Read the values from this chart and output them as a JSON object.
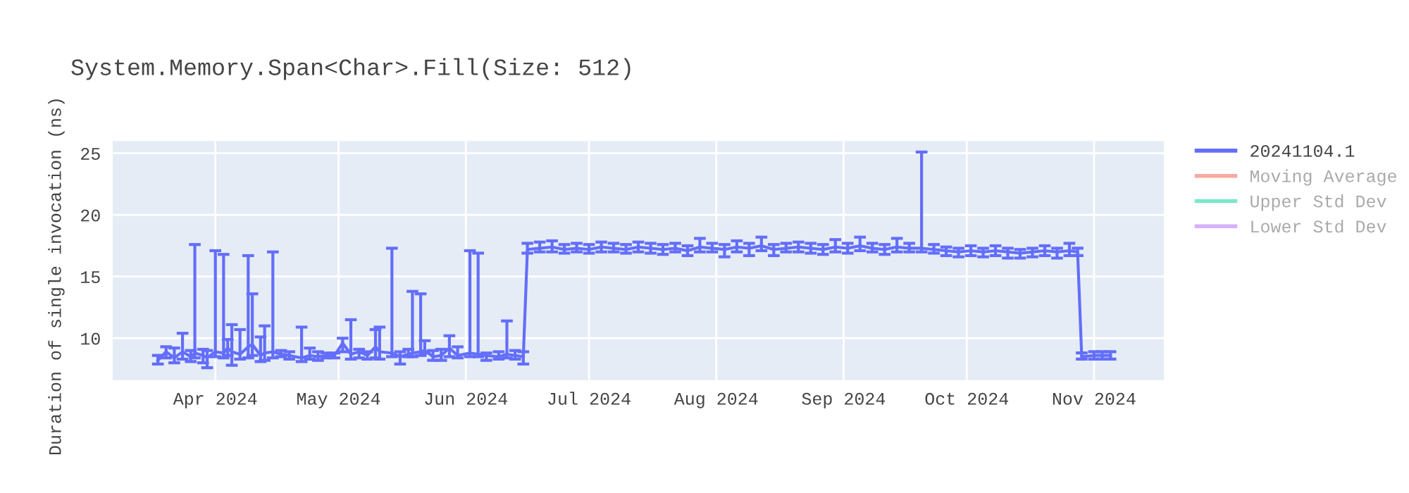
{
  "chart_data": {
    "type": "line",
    "title": "System.Memory.Span<Char>.Fill(Size: 512)",
    "ylabel": "Duration of single invocation (ns)",
    "xlim": [
      "2024-03-07",
      "2024-11-18"
    ],
    "ylim": [
      6.6,
      26
    ],
    "xticks": [
      {
        "value": "2024-04-01",
        "label": "Apr 2024"
      },
      {
        "value": "2024-05-01",
        "label": "May 2024"
      },
      {
        "value": "2024-06-01",
        "label": "Jun 2024"
      },
      {
        "value": "2024-07-01",
        "label": "Jul 2024"
      },
      {
        "value": "2024-08-01",
        "label": "Aug 2024"
      },
      {
        "value": "2024-09-01",
        "label": "Sep 2024"
      },
      {
        "value": "2024-10-01",
        "label": "Oct 2024"
      },
      {
        "value": "2024-11-01",
        "label": "Nov 2024"
      }
    ],
    "yticks": [
      10,
      15,
      20,
      25
    ],
    "grid": true,
    "legend": "right",
    "marker": "none",
    "line_style": "solid",
    "series": [
      {
        "name": "20241104.1",
        "color": "#636efa",
        "x": [
          "2024-03-18",
          "2024-03-20",
          "2024-03-22",
          "2024-03-24",
          "2024-03-26",
          "2024-03-27",
          "2024-03-29",
          "2024-03-30",
          "2024-04-01",
          "2024-04-03",
          "2024-04-04",
          "2024-04-05",
          "2024-04-07",
          "2024-04-09",
          "2024-04-10",
          "2024-04-12",
          "2024-04-13",
          "2024-04-15",
          "2024-04-17",
          "2024-04-19",
          "2024-04-22",
          "2024-04-24",
          "2024-04-26",
          "2024-04-28",
          "2024-04-30",
          "2024-05-02",
          "2024-05-04",
          "2024-05-06",
          "2024-05-08",
          "2024-05-10",
          "2024-05-11",
          "2024-05-14",
          "2024-05-16",
          "2024-05-18",
          "2024-05-19",
          "2024-05-21",
          "2024-05-22",
          "2024-05-24",
          "2024-05-26",
          "2024-05-28",
          "2024-05-30",
          "2024-06-02",
          "2024-06-04",
          "2024-06-06",
          "2024-06-09",
          "2024-06-11",
          "2024-06-13",
          "2024-06-15",
          "2024-06-16",
          "2024-06-19",
          "2024-06-22",
          "2024-06-25",
          "2024-06-28",
          "2024-07-01",
          "2024-07-04",
          "2024-07-07",
          "2024-07-10",
          "2024-07-13",
          "2024-07-16",
          "2024-07-19",
          "2024-07-22",
          "2024-07-25",
          "2024-07-28",
          "2024-07-31",
          "2024-08-03",
          "2024-08-06",
          "2024-08-09",
          "2024-08-12",
          "2024-08-15",
          "2024-08-18",
          "2024-08-21",
          "2024-08-24",
          "2024-08-27",
          "2024-08-30",
          "2024-09-02",
          "2024-09-05",
          "2024-09-08",
          "2024-09-11",
          "2024-09-14",
          "2024-09-17",
          "2024-09-20",
          "2024-09-23",
          "2024-09-26",
          "2024-09-29",
          "2024-10-02",
          "2024-10-05",
          "2024-10-08",
          "2024-10-11",
          "2024-10-14",
          "2024-10-17",
          "2024-10-20",
          "2024-10-23",
          "2024-10-26",
          "2024-10-28",
          "2024-10-29",
          "2024-11-01",
          "2024-11-03",
          "2024-11-05"
        ],
        "values": [
          8.2,
          8.9,
          8.4,
          8.9,
          8.5,
          8.8,
          8.6,
          8.4,
          8.9,
          8.8,
          9.2,
          8.9,
          8.7,
          9.3,
          9.5,
          8.6,
          8.8,
          8.9,
          8.7,
          8.6,
          8.4,
          8.6,
          8.5,
          8.6,
          8.6,
          9.6,
          8.7,
          8.9,
          8.6,
          9.3,
          8.9,
          8.8,
          8.5,
          8.7,
          8.8,
          8.9,
          9.0,
          8.5,
          8.6,
          9.2,
          8.6,
          8.8,
          8.7,
          8.6,
          8.5,
          8.7,
          8.6,
          8.5,
          17.2,
          17.3,
          17.4,
          17.2,
          17.3,
          17.2,
          17.4,
          17.3,
          17.2,
          17.4,
          17.3,
          17.2,
          17.3,
          17.1,
          17.4,
          17.3,
          17.2,
          17.4,
          17.3,
          17.5,
          17.2,
          17.3,
          17.4,
          17.3,
          17.2,
          17.4,
          17.3,
          17.5,
          17.3,
          17.2,
          17.4,
          17.3,
          17.3,
          17.2,
          17.1,
          17.0,
          17.1,
          17.0,
          17.1,
          17.0,
          16.9,
          17.0,
          17.1,
          17.0,
          17.1,
          17.0,
          8.5,
          8.6,
          8.6,
          8.6
        ],
        "errors": [
          [
            7.9,
            8.6
          ],
          [
            8.4,
            9.3
          ],
          [
            8.0,
            9.2
          ],
          [
            8.3,
            10.4
          ],
          [
            8.1,
            9.0
          ],
          [
            8.4,
            17.6
          ],
          [
            8.0,
            9.1
          ],
          [
            7.6,
            9.0
          ],
          [
            8.5,
            17.1
          ],
          [
            8.4,
            16.8
          ],
          [
            8.6,
            9.9
          ],
          [
            7.8,
            11.1
          ],
          [
            8.3,
            10.7
          ],
          [
            8.4,
            16.7
          ],
          [
            8.6,
            13.6
          ],
          [
            8.1,
            10.1
          ],
          [
            8.2,
            11.0
          ],
          [
            8.4,
            17.0
          ],
          [
            8.5,
            9.0
          ],
          [
            8.3,
            8.9
          ],
          [
            8.1,
            10.9
          ],
          [
            8.3,
            9.2
          ],
          [
            8.2,
            8.9
          ],
          [
            8.4,
            8.8
          ],
          [
            8.4,
            8.8
          ],
          [
            8.9,
            10.0
          ],
          [
            8.3,
            11.5
          ],
          [
            8.4,
            9.1
          ],
          [
            8.3,
            8.9
          ],
          [
            8.4,
            10.7
          ],
          [
            8.3,
            10.9
          ],
          [
            8.5,
            17.3
          ],
          [
            7.9,
            8.9
          ],
          [
            8.5,
            9.1
          ],
          [
            8.5,
            13.8
          ],
          [
            8.6,
            13.6
          ],
          [
            8.8,
            9.8
          ],
          [
            8.2,
            9.0
          ],
          [
            8.2,
            9.1
          ],
          [
            8.5,
            10.2
          ],
          [
            8.4,
            9.3
          ],
          [
            8.5,
            17.1
          ],
          [
            8.5,
            16.9
          ],
          [
            8.2,
            8.8
          ],
          [
            8.3,
            8.9
          ],
          [
            8.4,
            11.4
          ],
          [
            8.3,
            9.0
          ],
          [
            7.9,
            8.9
          ],
          [
            16.9,
            17.7
          ],
          [
            17.0,
            17.8
          ],
          [
            17.0,
            17.9
          ],
          [
            16.9,
            17.6
          ],
          [
            17.0,
            17.7
          ],
          [
            16.9,
            17.6
          ],
          [
            17.0,
            17.8
          ],
          [
            17.0,
            17.7
          ],
          [
            16.9,
            17.6
          ],
          [
            17.0,
            17.8
          ],
          [
            16.9,
            17.7
          ],
          [
            16.8,
            17.6
          ],
          [
            17.0,
            17.7
          ],
          [
            16.7,
            17.5
          ],
          [
            17.0,
            18.1
          ],
          [
            17.0,
            17.7
          ],
          [
            16.6,
            17.6
          ],
          [
            17.0,
            17.9
          ],
          [
            16.7,
            17.7
          ],
          [
            17.1,
            18.2
          ],
          [
            16.7,
            17.6
          ],
          [
            17.0,
            17.7
          ],
          [
            17.0,
            17.8
          ],
          [
            16.9,
            17.7
          ],
          [
            16.8,
            17.6
          ],
          [
            17.0,
            18.0
          ],
          [
            16.9,
            17.7
          ],
          [
            17.1,
            18.2
          ],
          [
            17.0,
            17.7
          ],
          [
            16.8,
            17.6
          ],
          [
            17.0,
            18.1
          ],
          [
            17.0,
            17.7
          ],
          [
            17.0,
            25.1
          ],
          [
            16.9,
            17.6
          ],
          [
            16.7,
            17.4
          ],
          [
            16.6,
            17.3
          ],
          [
            16.7,
            17.5
          ],
          [
            16.6,
            17.3
          ],
          [
            16.7,
            17.5
          ],
          [
            16.5,
            17.3
          ],
          [
            16.5,
            17.2
          ],
          [
            16.6,
            17.3
          ],
          [
            16.7,
            17.5
          ],
          [
            16.5,
            17.3
          ],
          [
            16.7,
            17.7
          ],
          [
            16.7,
            17.3
          ],
          [
            8.3,
            8.8
          ],
          [
            8.3,
            8.9
          ],
          [
            8.3,
            8.9
          ],
          [
            8.3,
            8.9
          ]
        ]
      },
      {
        "name": "Moving Average",
        "color": "#ef553b"
      },
      {
        "name": "Upper Std Dev",
        "color": "#00cc96"
      },
      {
        "name": "Lower Std Dev",
        "color": "#ab63fa"
      }
    ]
  }
}
